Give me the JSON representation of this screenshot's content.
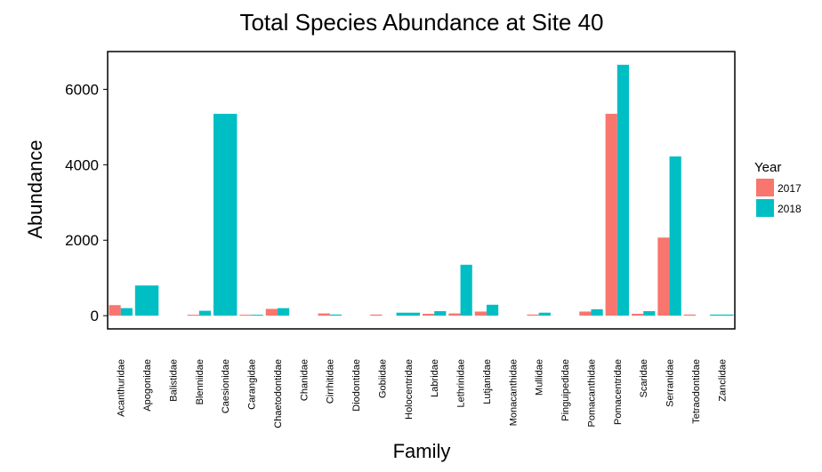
{
  "chart_data": {
    "type": "bar",
    "title": "Total Species Abundance at Site 40",
    "xlabel": "Family",
    "ylabel": "Abundance",
    "ylim": [
      -350,
      7000
    ],
    "yticks": [
      0,
      2000,
      4000,
      6000
    ],
    "grid": false,
    "legend": {
      "title": "Year",
      "placement": "right"
    },
    "colors": {
      "2017": "#F8766D",
      "2018": "#00BFC4"
    },
    "categories": [
      "Acanthuridae",
      "Apogonidae",
      "Balistidae",
      "Blenniidae",
      "Caesionidae",
      "Carangidae",
      "Chaetodontidae",
      "Chanidae",
      "Cirrhitidae",
      "Diodontidae",
      "Gobiidae",
      "Holocentridae",
      "Labridae",
      "Lethrinidae",
      "Lutjanidae",
      "Monacanthidae",
      "Mullidae",
      "Pinguipedidae",
      "Pomacanthidae",
      "Pomacentridae",
      "Scaridae",
      "Serranidae",
      "Tetraodontidae",
      "Zanclidae"
    ],
    "series": [
      {
        "name": "2017",
        "values": [
          280,
          null,
          null,
          25,
          null,
          25,
          180,
          null,
          60,
          null,
          30,
          null,
          50,
          60,
          110,
          null,
          30,
          null,
          110,
          5350,
          50,
          2070,
          30,
          null
        ]
      },
      {
        "name": "2018",
        "values": [
          200,
          800,
          null,
          130,
          5350,
          25,
          200,
          null,
          30,
          null,
          null,
          80,
          120,
          1350,
          290,
          null,
          80,
          null,
          170,
          6650,
          120,
          4220,
          null,
          30
        ]
      }
    ],
    "single_bars": [
      1,
      4,
      11,
      23
    ]
  }
}
